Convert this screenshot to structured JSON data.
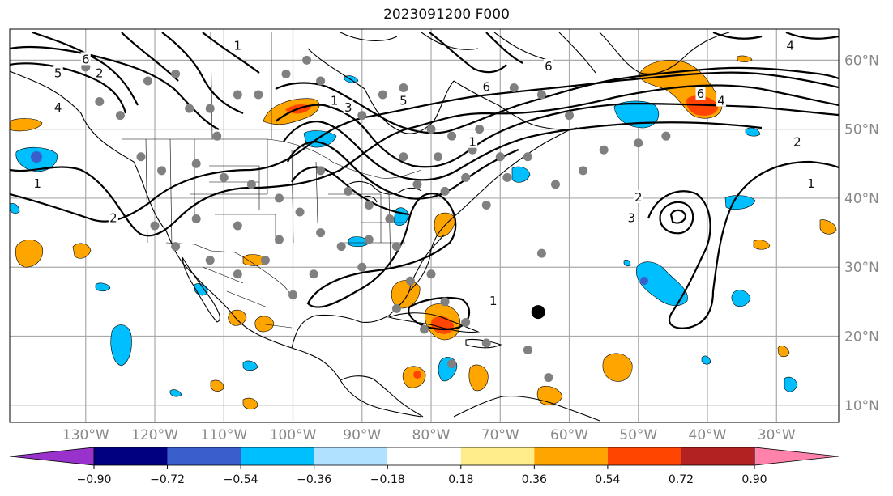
{
  "title": "2023091200 F000",
  "map": {
    "lat_labels": [
      {
        "value": 60,
        "text": "60°N"
      },
      {
        "value": 50,
        "text": "50°N"
      },
      {
        "value": 40,
        "text": "40°N"
      },
      {
        "value": 30,
        "text": "30°N"
      },
      {
        "value": 20,
        "text": "20°N"
      },
      {
        "value": 10,
        "text": "10°N"
      }
    ],
    "lon_labels": [
      {
        "value": -130,
        "text": "130°W"
      },
      {
        "value": -120,
        "text": "120°W"
      },
      {
        "value": -110,
        "text": "110°W"
      },
      {
        "value": -100,
        "text": "100°W"
      },
      {
        "value": -90,
        "text": "90°W"
      },
      {
        "value": -80,
        "text": "80°W"
      },
      {
        "value": -70,
        "text": "70°W"
      },
      {
        "value": -60,
        "text": "60°W"
      },
      {
        "value": -50,
        "text": "50°W"
      },
      {
        "value": -40,
        "text": "40°W"
      },
      {
        "value": -30,
        "text": "30°W"
      }
    ],
    "storm_marker": {
      "lon": -64.5,
      "lat": 23.5
    },
    "station_points": [
      [
        -130,
        59
      ],
      [
        -128,
        54
      ],
      [
        -125,
        52
      ],
      [
        -121,
        57
      ],
      [
        -117,
        58
      ],
      [
        -115,
        53
      ],
      [
        -112,
        53
      ],
      [
        -111,
        49
      ],
      [
        -108,
        55
      ],
      [
        -105,
        55
      ],
      [
        -101,
        58
      ],
      [
        -98,
        60
      ],
      [
        -96,
        57
      ],
      [
        -94,
        54
      ],
      [
        -90,
        52
      ],
      [
        -87,
        55
      ],
      [
        -84,
        56
      ],
      [
        -80,
        50
      ],
      [
        -77,
        49
      ],
      [
        -73,
        50
      ],
      [
        -68,
        56
      ],
      [
        -64,
        55
      ],
      [
        -60,
        52
      ],
      [
        -55,
        47
      ],
      [
        -50,
        48
      ],
      [
        -46,
        49
      ],
      [
        -122,
        46
      ],
      [
        -119,
        44
      ],
      [
        -114,
        45
      ],
      [
        -110,
        43
      ],
      [
        -106,
        42
      ],
      [
        -102,
        40
      ],
      [
        -99,
        38
      ],
      [
        -96,
        44
      ],
      [
        -92,
        41
      ],
      [
        -89,
        39
      ],
      [
        -86,
        37
      ],
      [
        -82,
        42
      ],
      [
        -78,
        41
      ],
      [
        -75,
        43
      ],
      [
        -72,
        39
      ],
      [
        -69,
        43
      ],
      [
        -66,
        46
      ],
      [
        -62,
        42
      ],
      [
        -58,
        44
      ],
      [
        -120,
        36
      ],
      [
        -117,
        33
      ],
      [
        -112,
        31
      ],
      [
        -108,
        29
      ],
      [
        -104,
        31
      ],
      [
        -100,
        26
      ],
      [
        -97,
        29
      ],
      [
        -93,
        33
      ],
      [
        -89,
        34
      ],
      [
        -85,
        33
      ],
      [
        -83,
        28
      ],
      [
        -80,
        29
      ],
      [
        -78,
        25
      ],
      [
        -75,
        22
      ],
      [
        -81,
        21
      ],
      [
        -77,
        16
      ],
      [
        -72,
        19
      ],
      [
        -66,
        18
      ],
      [
        -63,
        14
      ],
      [
        -85,
        24
      ],
      [
        -90,
        30
      ],
      [
        -96,
        35
      ],
      [
        -102,
        34
      ],
      [
        -108,
        36
      ],
      [
        -114,
        37
      ],
      [
        -84,
        46
      ],
      [
        -79,
        46
      ],
      [
        -74,
        47
      ],
      [
        -70,
        46
      ],
      [
        -64,
        32
      ]
    ],
    "contour_labels": [
      {
        "lon": -130,
        "lat": 60,
        "text": "6"
      },
      {
        "lon": -134,
        "lat": 58,
        "text": "5"
      },
      {
        "lon": -128,
        "lat": 58,
        "text": "2"
      },
      {
        "lon": -134,
        "lat": 53,
        "text": "4"
      },
      {
        "lon": -137,
        "lat": 42,
        "text": "1"
      },
      {
        "lon": -126,
        "lat": 37,
        "text": "2"
      },
      {
        "lon": -108,
        "lat": 62,
        "text": "1"
      },
      {
        "lon": -94,
        "lat": 54,
        "text": "1"
      },
      {
        "lon": -92,
        "lat": 53,
        "text": "3"
      },
      {
        "lon": -84,
        "lat": 54,
        "text": "5"
      },
      {
        "lon": -72,
        "lat": 56,
        "text": "6"
      },
      {
        "lon": -63,
        "lat": 59,
        "text": "6"
      },
      {
        "lon": -41,
        "lat": 55,
        "text": "6"
      },
      {
        "lon": -38,
        "lat": 54,
        "text": "4"
      },
      {
        "lon": -28,
        "lat": 62,
        "text": "4"
      },
      {
        "lon": -27,
        "lat": 48,
        "text": "2"
      },
      {
        "lon": -25,
        "lat": 42,
        "text": "1"
      },
      {
        "lon": -50,
        "lat": 40,
        "text": "2"
      },
      {
        "lon": -51,
        "lat": 37,
        "text": "3"
      },
      {
        "lon": -74,
        "lat": 48,
        "text": "1"
      },
      {
        "lon": -71,
        "lat": 25,
        "text": "1"
      }
    ]
  },
  "colorbar": {
    "colors": [
      "#9932cc",
      "#000080",
      "#3a5fcd",
      "#00bfff",
      "#b0e2ff",
      "#ffffff",
      "#ffec8b",
      "#ffa500",
      "#ff4500",
      "#b22222",
      "#ff82ab"
    ],
    "ticks": [
      "−0.90",
      "−0.72",
      "−0.54",
      "−0.36",
      "−0.18",
      "0.18",
      "0.36",
      "0.54",
      "0.72",
      "0.90"
    ]
  }
}
